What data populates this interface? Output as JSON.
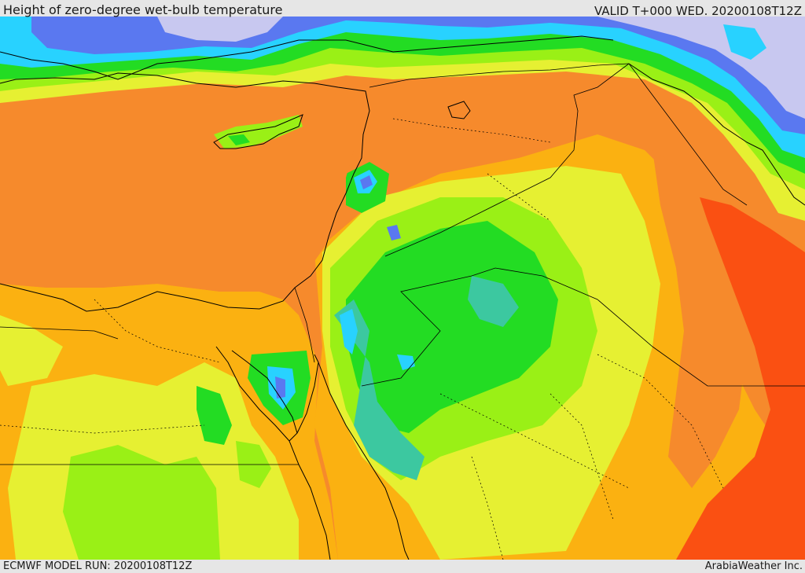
{
  "header": {
    "title": "Height of zero-degree wet-bulb temperature",
    "valid": "VALID T+000 WED. 20200108T12Z"
  },
  "footer": {
    "model_run": "ECMWF MODEL RUN: 20200108T12Z",
    "credit": "ArabiaWeather Inc."
  },
  "map": {
    "field": "zero-degree wet-bulb height",
    "colors": {
      "very_high": "#fa5012",
      "high": "#f68a2c",
      "med_high": "#fbb111",
      "medium": "#e6f032",
      "med_low": "#9af016",
      "low": "#23dc23",
      "lower": "#3cc8a0",
      "very_low": "#28d2ff",
      "lowest": "#5a78f0",
      "minimal": "#c8c8f0",
      "borders": "#000000"
    }
  }
}
